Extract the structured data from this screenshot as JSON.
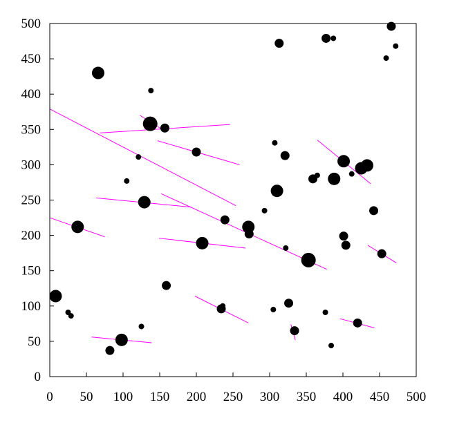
{
  "chart_data": {
    "type": "scatter",
    "title": "",
    "xlabel": "",
    "ylabel": "",
    "xlim": [
      0,
      500
    ],
    "ylim": [
      0,
      500
    ],
    "xticks": [
      "0",
      "50",
      "100",
      "150",
      "200",
      "250",
      "300",
      "350",
      "400",
      "450",
      "500"
    ],
    "yticks": [
      "0",
      "50",
      "100",
      "150",
      "200",
      "250",
      "300",
      "350",
      "400",
      "450",
      "500"
    ],
    "grid": false,
    "legend": "none",
    "colors": {
      "points": "#000000",
      "lines": "#ff00ff",
      "axes": "#000000",
      "background": "#ffffff"
    },
    "points": [
      {
        "x": 8,
        "y": 114,
        "size": "large"
      },
      {
        "x": 25,
        "y": 91,
        "size": "small"
      },
      {
        "x": 29,
        "y": 86,
        "size": "small"
      },
      {
        "x": 38,
        "y": 212,
        "size": "large"
      },
      {
        "x": 66,
        "y": 430,
        "size": "large"
      },
      {
        "x": 82,
        "y": 37,
        "size": "medium"
      },
      {
        "x": 98,
        "y": 52,
        "size": "large"
      },
      {
        "x": 105,
        "y": 277,
        "size": "small"
      },
      {
        "x": 121,
        "y": 311,
        "size": "small"
      },
      {
        "x": 125,
        "y": 71,
        "size": "small"
      },
      {
        "x": 129,
        "y": 247,
        "size": "large"
      },
      {
        "x": 138,
        "y": 405,
        "size": "small"
      },
      {
        "x": 137,
        "y": 358,
        "size": "xlarge"
      },
      {
        "x": 157,
        "y": 352,
        "size": "medium"
      },
      {
        "x": 159,
        "y": 129,
        "size": "medium"
      },
      {
        "x": 200,
        "y": 318,
        "size": "medium"
      },
      {
        "x": 208,
        "y": 189,
        "size": "large"
      },
      {
        "x": 234,
        "y": 96,
        "size": "medium"
      },
      {
        "x": 236,
        "y": 100,
        "size": "small"
      },
      {
        "x": 239,
        "y": 222,
        "size": "medium"
      },
      {
        "x": 271,
        "y": 212,
        "size": "large"
      },
      {
        "x": 272,
        "y": 202,
        "size": "medium"
      },
      {
        "x": 293,
        "y": 235,
        "size": "small"
      },
      {
        "x": 305,
        "y": 95,
        "size": "small"
      },
      {
        "x": 307,
        "y": 331,
        "size": "small"
      },
      {
        "x": 310,
        "y": 263,
        "size": "large"
      },
      {
        "x": 313,
        "y": 472,
        "size": "medium"
      },
      {
        "x": 321,
        "y": 313,
        "size": "medium"
      },
      {
        "x": 322,
        "y": 182,
        "size": "small"
      },
      {
        "x": 326,
        "y": 104,
        "size": "medium"
      },
      {
        "x": 334,
        "y": 65,
        "size": "medium"
      },
      {
        "x": 353,
        "y": 165,
        "size": "xlarge"
      },
      {
        "x": 359,
        "y": 280,
        "size": "medium"
      },
      {
        "x": 365,
        "y": 285,
        "size": "small"
      },
      {
        "x": 376,
        "y": 91,
        "size": "small"
      },
      {
        "x": 377,
        "y": 479,
        "size": "medium"
      },
      {
        "x": 384,
        "y": 44,
        "size": "small"
      },
      {
        "x": 387,
        "y": 479,
        "size": "small"
      },
      {
        "x": 388,
        "y": 280,
        "size": "large"
      },
      {
        "x": 401,
        "y": 305,
        "size": "large"
      },
      {
        "x": 401,
        "y": 199,
        "size": "medium"
      },
      {
        "x": 404,
        "y": 186,
        "size": "medium"
      },
      {
        "x": 412,
        "y": 287,
        "size": "small"
      },
      {
        "x": 420,
        "y": 76,
        "size": "medium"
      },
      {
        "x": 425,
        "y": 295,
        "size": "large"
      },
      {
        "x": 433,
        "y": 299,
        "size": "large"
      },
      {
        "x": 442,
        "y": 235,
        "size": "medium"
      },
      {
        "x": 453,
        "y": 174,
        "size": "medium"
      },
      {
        "x": 459,
        "y": 451,
        "size": "small"
      },
      {
        "x": 466,
        "y": 496,
        "size": "medium"
      },
      {
        "x": 472,
        "y": 468,
        "size": "small"
      }
    ],
    "lines": [
      {
        "x1": 0,
        "y1": 379,
        "x2": 254,
        "y2": 242
      },
      {
        "x1": 68,
        "y1": 345,
        "x2": 246,
        "y2": 357
      },
      {
        "x1": 123,
        "y1": 370,
        "x2": 158,
        "y2": 347
      },
      {
        "x1": 147,
        "y1": 334,
        "x2": 259,
        "y2": 300
      },
      {
        "x1": 63,
        "y1": 253,
        "x2": 193,
        "y2": 240
      },
      {
        "x1": 0,
        "y1": 225,
        "x2": 75,
        "y2": 198
      },
      {
        "x1": 152,
        "y1": 259,
        "x2": 378,
        "y2": 152
      },
      {
        "x1": 149,
        "y1": 196,
        "x2": 267,
        "y2": 182
      },
      {
        "x1": 198,
        "y1": 114,
        "x2": 271,
        "y2": 76
      },
      {
        "x1": 57,
        "y1": 56,
        "x2": 139,
        "y2": 48
      },
      {
        "x1": 329,
        "y1": 74,
        "x2": 335,
        "y2": 52
      },
      {
        "x1": 365,
        "y1": 335,
        "x2": 438,
        "y2": 273
      },
      {
        "x1": 434,
        "y1": 186,
        "x2": 473,
        "y2": 161
      },
      {
        "x1": 396,
        "y1": 82,
        "x2": 443,
        "y2": 69
      }
    ]
  }
}
